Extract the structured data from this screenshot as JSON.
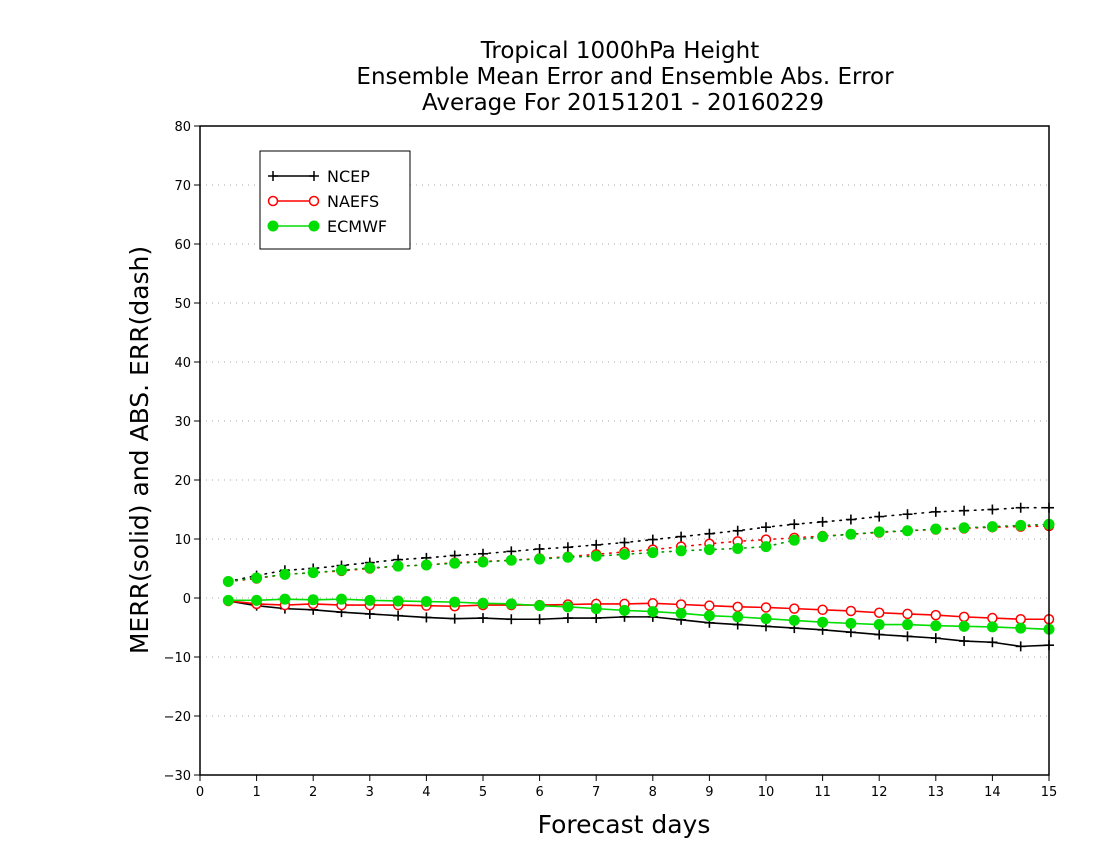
{
  "chart_data": {
    "type": "line",
    "title": [
      "Tropical 1000hPa Height",
      "Ensemble Mean Error and Ensemble Abs. Error",
      "Average For 20151201 - 20160229"
    ],
    "xlabel": "Forecast days",
    "ylabel": "MERR(solid) and ABS. ERR(dash)",
    "xlim": [
      0,
      15
    ],
    "ylim": [
      -30,
      80
    ],
    "xticks": [
      0,
      1,
      2,
      3,
      4,
      5,
      6,
      7,
      8,
      9,
      10,
      11,
      12,
      13,
      14,
      15
    ],
    "yticks": [
      -30,
      -20,
      -10,
      0,
      10,
      20,
      30,
      40,
      50,
      60,
      70,
      80
    ],
    "ytick_labels": [
      "−30",
      "−20",
      "−10",
      "0",
      "10",
      "20",
      "30",
      "40",
      "50",
      "60",
      "70",
      "80"
    ],
    "grid": "horizontal dotted",
    "legend_position": "top-left",
    "x": [
      0.5,
      1,
      1.5,
      2,
      2.5,
      3,
      3.5,
      4,
      4.5,
      5,
      5.5,
      6,
      6.5,
      7,
      7.5,
      8,
      8.5,
      9,
      9.5,
      10,
      10.5,
      11,
      11.5,
      12,
      12.5,
      13,
      13.5,
      14,
      14.5,
      15
    ],
    "series": [
      {
        "name": "NCEP",
        "color": "#000000",
        "marker": "plus",
        "merr": [
          -0.5,
          -1.3,
          -1.8,
          -2.0,
          -2.4,
          -2.7,
          -3.0,
          -3.3,
          -3.5,
          -3.4,
          -3.6,
          -3.6,
          -3.4,
          -3.4,
          -3.2,
          -3.2,
          -3.7,
          -4.2,
          -4.5,
          -4.8,
          -5.1,
          -5.4,
          -5.8,
          -6.2,
          -6.5,
          -6.8,
          -7.3,
          -7.5,
          -8.2,
          -8.0
        ],
        "abs_err": [
          2.8,
          3.8,
          4.7,
          5.0,
          5.5,
          6.0,
          6.5,
          6.8,
          7.2,
          7.5,
          7.9,
          8.3,
          8.6,
          9.0,
          9.4,
          9.9,
          10.4,
          10.9,
          11.4,
          12.0,
          12.5,
          12.9,
          13.3,
          13.8,
          14.2,
          14.6,
          14.8,
          15.0,
          15.3,
          15.3
        ]
      },
      {
        "name": "NAEFS",
        "color": "#ff0000",
        "marker": "circle-open",
        "merr": [
          -0.5,
          -1.0,
          -1.2,
          -1.0,
          -1.2,
          -1.2,
          -1.2,
          -1.3,
          -1.4,
          -1.2,
          -1.2,
          -1.2,
          -1.1,
          -1.0,
          -1.0,
          -0.9,
          -1.1,
          -1.3,
          -1.5,
          -1.6,
          -1.8,
          -2.0,
          -2.2,
          -2.5,
          -2.7,
          -2.9,
          -3.2,
          -3.4,
          -3.6,
          -3.6
        ],
        "abs_err": [
          2.8,
          3.3,
          4.0,
          4.3,
          4.6,
          5.0,
          5.4,
          5.6,
          6.0,
          6.2,
          6.4,
          6.7,
          7.0,
          7.4,
          7.8,
          8.2,
          8.7,
          9.2,
          9.6,
          9.9,
          10.2,
          10.5,
          10.8,
          11.1,
          11.4,
          11.6,
          11.8,
          12.0,
          12.1,
          12.2
        ]
      },
      {
        "name": "ECMWF",
        "color": "#00dd00",
        "marker": "circle-filled",
        "merr": [
          -0.4,
          -0.4,
          -0.2,
          -0.3,
          -0.2,
          -0.4,
          -0.5,
          -0.6,
          -0.7,
          -0.9,
          -1.0,
          -1.3,
          -1.5,
          -1.8,
          -2.1,
          -2.3,
          -2.6,
          -3.0,
          -3.2,
          -3.5,
          -3.8,
          -4.1,
          -4.3,
          -4.5,
          -4.5,
          -4.7,
          -4.8,
          -4.9,
          -5.1,
          -5.3
        ],
        "abs_err": [
          2.8,
          3.4,
          4.0,
          4.3,
          4.7,
          5.1,
          5.4,
          5.6,
          5.9,
          6.1,
          6.4,
          6.6,
          6.9,
          7.1,
          7.4,
          7.7,
          8.0,
          8.2,
          8.4,
          8.7,
          9.8,
          10.4,
          10.8,
          11.2,
          11.4,
          11.7,
          11.9,
          12.1,
          12.3,
          12.5
        ]
      }
    ]
  }
}
